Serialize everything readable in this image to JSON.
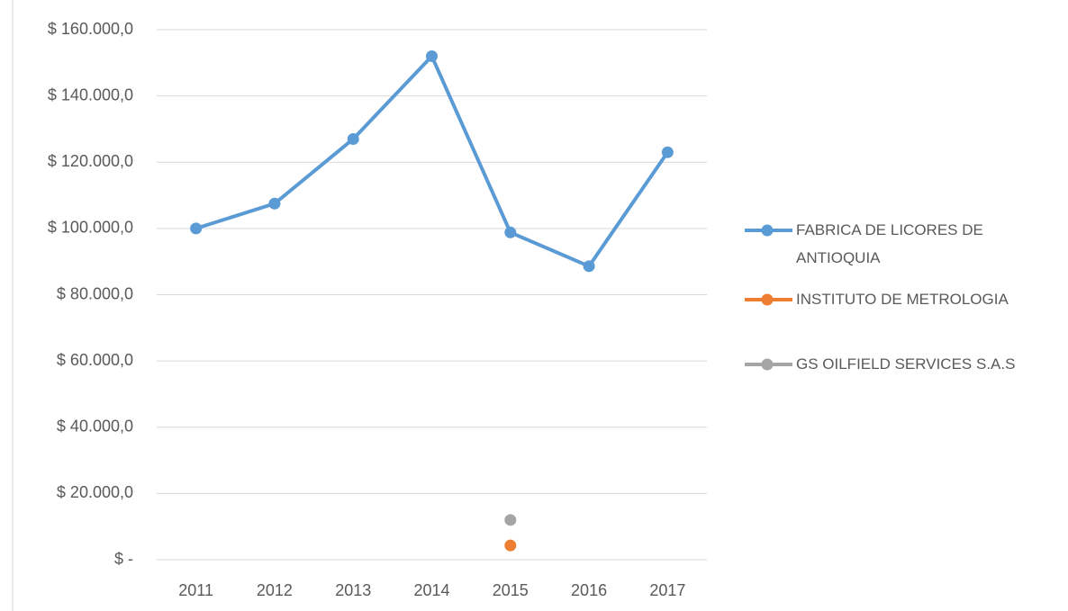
{
  "chart_data": {
    "type": "line",
    "categories": [
      "2011",
      "2012",
      "2013",
      "2014",
      "2015",
      "2016",
      "2017"
    ],
    "series": [
      {
        "name": "FABRICA DE LICORES DE ANTIOQUIA",
        "color": "#5b9bd5",
        "values": [
          100000,
          107500,
          127000,
          152000,
          98800,
          88600,
          123000
        ]
      },
      {
        "name": "INSTITUTO DE METROLOGIA",
        "color": "#ed7d31",
        "values": [
          null,
          null,
          null,
          null,
          4300,
          null,
          null
        ]
      },
      {
        "name": "GS OILFIELD SERVICES S.A.S",
        "color": "#a5a5a5",
        "values": [
          null,
          null,
          null,
          null,
          12000,
          null,
          null
        ]
      }
    ],
    "ylim": [
      0,
      160000
    ],
    "yticks": [
      {
        "value": 0,
        "label": "$ -"
      },
      {
        "value": 20000,
        "label": "$ 20.000,0"
      },
      {
        "value": 40000,
        "label": "$ 40.000,0"
      },
      {
        "value": 60000,
        "label": "$ 60.000,0"
      },
      {
        "value": 80000,
        "label": "$ 80.000,0"
      },
      {
        "value": 100000,
        "label": "$ 100.000,0"
      },
      {
        "value": 120000,
        "label": "$ 120.000,0"
      },
      {
        "value": 140000,
        "label": "$ 140.000,0"
      },
      {
        "value": 160000,
        "label": "$ 160.000,0"
      }
    ],
    "grid": true,
    "legend": "right"
  }
}
